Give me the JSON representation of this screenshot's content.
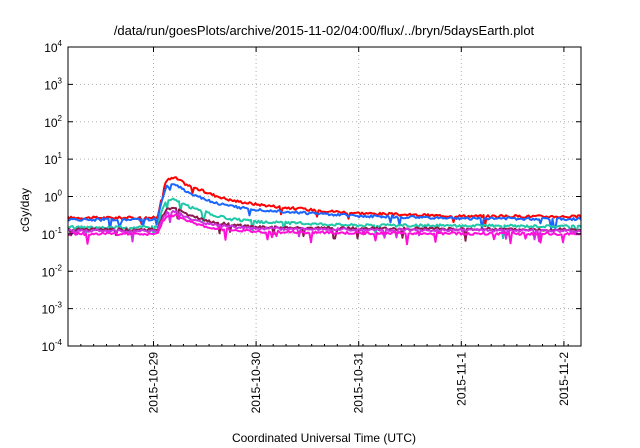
{
  "chart_data": {
    "type": "line",
    "title": "/data/run/goesPlots/archive/2015-11-02/04:00/flux/../bryn/5daysEarth.plot",
    "xlabel": "Coordinated Universal Time (UTC)",
    "ylabel": "cGy/day",
    "yscale": "log",
    "ylim": [
      0.0001,
      10000
    ],
    "y_ticks": [
      {
        "base": "10",
        "exp": "-4",
        "value": 0.0001
      },
      {
        "base": "10",
        "exp": "-3",
        "value": 0.001
      },
      {
        "base": "10",
        "exp": "-2",
        "value": 0.01
      },
      {
        "base": "10",
        "exp": "-1",
        "value": 0.1
      },
      {
        "base": "10",
        "exp": "0",
        "value": 1
      },
      {
        "base": "10",
        "exp": "1",
        "value": 10
      },
      {
        "base": "10",
        "exp": "2",
        "value": 100
      },
      {
        "base": "10",
        "exp": "3",
        "value": 1000
      },
      {
        "base": "10",
        "exp": "4",
        "value": 10000
      }
    ],
    "xlim": [
      "2015-10-28 04:00",
      "2015-11-02 04:00"
    ],
    "x_ticks": [
      "2015-10-29",
      "2015-10-30",
      "2015-10-31",
      "2015-11-1",
      "2015-11-2"
    ],
    "grid": true,
    "series": [
      {
        "color": "#ff0000",
        "base": 0.28,
        "points": [
          [
            "2015-10-28 04:00",
            0.27
          ],
          [
            "2015-10-29 00:00",
            0.27
          ],
          [
            "2015-10-29 01:00",
            0.28
          ],
          [
            "2015-10-29 02:00",
            1.2
          ],
          [
            "2015-10-29 03:00",
            2.7
          ],
          [
            "2015-10-29 05:00",
            3.2
          ],
          [
            "2015-10-29 08:00",
            2.0
          ],
          [
            "2015-10-29 14:00",
            1.1
          ],
          [
            "2015-10-29 18:00",
            0.8
          ],
          [
            "2015-10-30 00:00",
            0.62
          ],
          [
            "2015-10-30 06:00",
            0.52
          ],
          [
            "2015-10-30 12:00",
            0.45
          ],
          [
            "2015-10-30 18:00",
            0.4
          ],
          [
            "2015-10-31 00:00",
            0.36
          ],
          [
            "2015-10-31 12:00",
            0.32
          ],
          [
            "2015-11-01 00:00",
            0.3
          ],
          [
            "2015-11-02 04:00",
            0.29
          ]
        ]
      },
      {
        "color": "#1a66ff",
        "base": 0.25,
        "points": [
          [
            "2015-10-28 04:00",
            0.24
          ],
          [
            "2015-10-29 00:00",
            0.24
          ],
          [
            "2015-10-29 01:00",
            0.25
          ],
          [
            "2015-10-29 02:00",
            0.85
          ],
          [
            "2015-10-29 03:00",
            1.8
          ],
          [
            "2015-10-29 05:00",
            2.2
          ],
          [
            "2015-10-29 08:00",
            1.3
          ],
          [
            "2015-10-29 14:00",
            0.7
          ],
          [
            "2015-10-29 18:00",
            0.55
          ],
          [
            "2015-10-30 00:00",
            0.45
          ],
          [
            "2015-10-30 06:00",
            0.4
          ],
          [
            "2015-10-30 12:00",
            0.36
          ],
          [
            "2015-10-30 18:00",
            0.33
          ],
          [
            "2015-10-31 00:00",
            0.3
          ],
          [
            "2015-10-31 12:00",
            0.28
          ],
          [
            "2015-11-01 00:00",
            0.26
          ],
          [
            "2015-11-02 04:00",
            0.25
          ]
        ]
      },
      {
        "color": "#20c8a8",
        "base": 0.16,
        "points": [
          [
            "2015-10-28 04:00",
            0.15
          ],
          [
            "2015-10-29 00:00",
            0.15
          ],
          [
            "2015-10-29 01:00",
            0.16
          ],
          [
            "2015-10-29 02:00",
            0.45
          ],
          [
            "2015-10-29 03:00",
            0.75
          ],
          [
            "2015-10-29 05:00",
            0.85
          ],
          [
            "2015-10-29 08:00",
            0.55
          ],
          [
            "2015-10-29 14:00",
            0.32
          ],
          [
            "2015-10-29 18:00",
            0.25
          ],
          [
            "2015-10-30 00:00",
            0.21
          ],
          [
            "2015-10-30 12:00",
            0.19
          ],
          [
            "2015-10-31 00:00",
            0.17
          ],
          [
            "2015-11-02 04:00",
            0.16
          ]
        ]
      },
      {
        "color": "#8a1a4a",
        "base": 0.13,
        "points": [
          [
            "2015-10-28 04:00",
            0.13
          ],
          [
            "2015-10-29 00:00",
            0.13
          ],
          [
            "2015-10-29 01:00",
            0.13
          ],
          [
            "2015-10-29 02:00",
            0.3
          ],
          [
            "2015-10-29 03:00",
            0.45
          ],
          [
            "2015-10-29 05:00",
            0.48
          ],
          [
            "2015-10-29 08:00",
            0.32
          ],
          [
            "2015-10-29 14:00",
            0.2
          ],
          [
            "2015-10-30 00:00",
            0.15
          ],
          [
            "2015-10-31 00:00",
            0.14
          ],
          [
            "2015-11-02 04:00",
            0.13
          ]
        ]
      },
      {
        "color": "#d030e0",
        "base": 0.12,
        "points": [
          [
            "2015-10-28 04:00",
            0.12
          ],
          [
            "2015-10-29 00:00",
            0.12
          ],
          [
            "2015-10-29 01:00",
            0.12
          ],
          [
            "2015-10-29 02:00",
            0.25
          ],
          [
            "2015-10-29 03:00",
            0.36
          ],
          [
            "2015-10-29 05:00",
            0.4
          ],
          [
            "2015-10-29 08:00",
            0.27
          ],
          [
            "2015-10-29 14:00",
            0.17
          ],
          [
            "2015-10-30 00:00",
            0.14
          ],
          [
            "2015-10-31 00:00",
            0.13
          ],
          [
            "2015-11-02 04:00",
            0.12
          ]
        ]
      },
      {
        "color": "#ff10d8",
        "base": 0.1,
        "points": [
          [
            "2015-10-28 04:00",
            0.1
          ],
          [
            "2015-10-29 00:00",
            0.1
          ],
          [
            "2015-10-29 01:00",
            0.1
          ],
          [
            "2015-10-29 02:00",
            0.2
          ],
          [
            "2015-10-29 03:00",
            0.29
          ],
          [
            "2015-10-29 05:00",
            0.32
          ],
          [
            "2015-10-29 08:00",
            0.22
          ],
          [
            "2015-10-29 14:00",
            0.14
          ],
          [
            "2015-10-30 00:00",
            0.115
          ],
          [
            "2015-10-31 00:00",
            0.105
          ],
          [
            "2015-11-02 04:00",
            0.1
          ]
        ]
      }
    ]
  }
}
